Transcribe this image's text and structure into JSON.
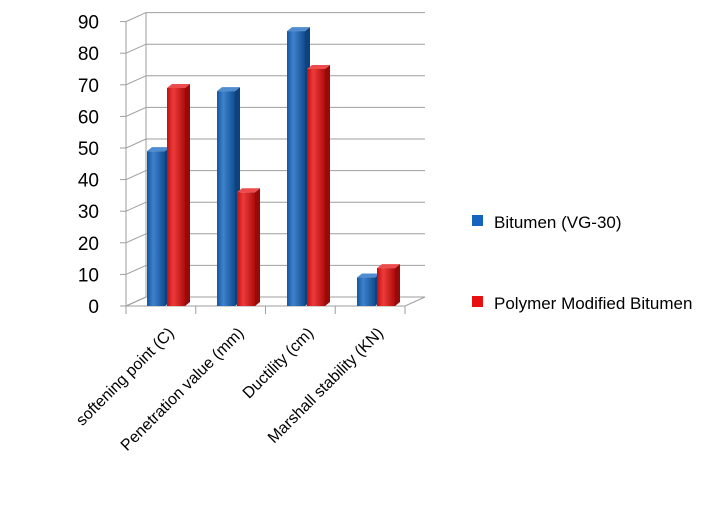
{
  "chart_data": {
    "type": "bar",
    "categories": [
      "softening point (C)",
      "Penetration value (mm)",
      "Ductility (cm)",
      "Marshall stability  (KN)"
    ],
    "series": [
      {
        "name": "Bitumen (VG-30)",
        "values": [
          49,
          68,
          87,
          9
        ],
        "color": "#1565c0"
      },
      {
        "name": "Polymer Modified Bitumen",
        "values": [
          69,
          36,
          75,
          12
        ],
        "color": "#e81010"
      }
    ],
    "yticks": [
      "0",
      "10",
      "20",
      "30",
      "40",
      "50",
      "60",
      "70",
      "80",
      "90"
    ],
    "ylim": [
      0,
      90
    ],
    "grid": true,
    "three_d": true,
    "legend_position": "right"
  },
  "legend": {
    "items": [
      {
        "label": "Bitumen (VG-30)",
        "color": "#1565c0"
      },
      {
        "label": "Polymer Modified Bitumen",
        "color": "#e81010"
      }
    ]
  }
}
